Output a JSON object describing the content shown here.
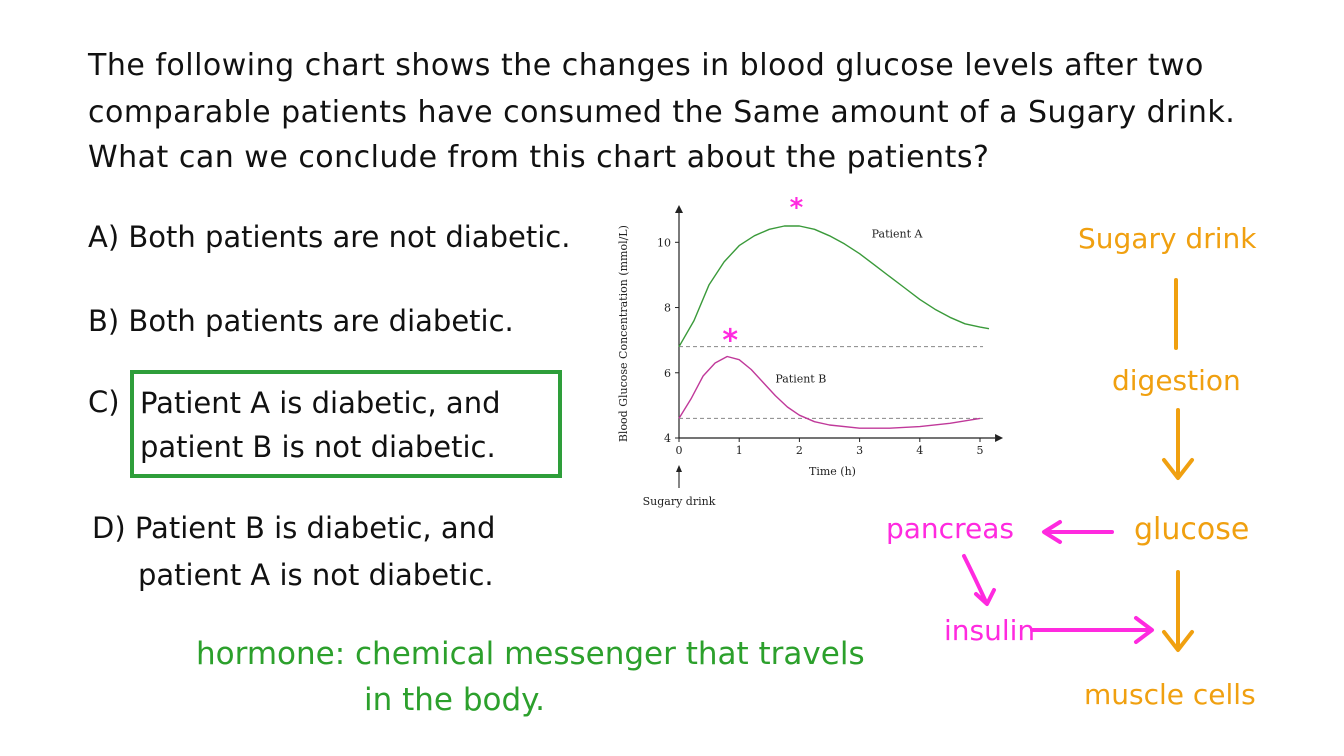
{
  "question": {
    "lines": [
      "The following chart shows the changes in blood glucose levels after two",
      "comparable patients have consumed the Same amount of a Sugary drink.",
      "What can we conclude from this chart about the patients?"
    ]
  },
  "options": {
    "a": "A) Both patients are not diabetic.",
    "b": "B) Both patients are diabetic.",
    "c_label": "C)",
    "c_line1": "Patient A is diabetic, and",
    "c_line2": "patient B is not diabetic.",
    "d_line1": "D) Patient B is diabetic, and",
    "d_line2": "patient A is not diabetic."
  },
  "note": {
    "line1": "hormone: chemical messenger that travels",
    "line2": "in the body."
  },
  "flow": {
    "sugary_drink": "Sugary drink",
    "digestion": "digestion",
    "glucose": "glucose",
    "pancreas": "pancreas",
    "insulin": "insulin",
    "muscle_cells": "muscle cells",
    "colors": {
      "orange": "#f0a010",
      "magenta": "#ff2adf",
      "green": "#2ca02c"
    }
  },
  "chart_data": {
    "type": "line",
    "ylabel": "Blood Glucose Concentration (mmol/L)",
    "xlabel": "Time (h)",
    "x_ticks": [
      0,
      1,
      2,
      3,
      4,
      5
    ],
    "y_ticks": [
      4,
      6,
      8,
      10
    ],
    "xlim": [
      0,
      5.2
    ],
    "ylim": [
      4,
      10.8
    ],
    "annotation_bottom": "Sugary drink",
    "reference_lines": [
      6.8,
      4.6
    ],
    "series": [
      {
        "name": "Patient A",
        "color": "#3a9a3a",
        "x": [
          0,
          0.25,
          0.5,
          0.75,
          1,
          1.25,
          1.5,
          1.75,
          2,
          2.25,
          2.5,
          2.75,
          3,
          3.25,
          3.5,
          3.75,
          4,
          4.25,
          4.5,
          4.75,
          5,
          5.15
        ],
        "y": [
          6.8,
          7.6,
          8.7,
          9.4,
          9.9,
          10.2,
          10.4,
          10.5,
          10.5,
          10.4,
          10.2,
          9.95,
          9.65,
          9.3,
          8.95,
          8.6,
          8.25,
          7.95,
          7.7,
          7.5,
          7.4,
          7.35
        ]
      },
      {
        "name": "Patient B",
        "color": "#c0399a",
        "x": [
          0,
          0.2,
          0.4,
          0.6,
          0.8,
          1,
          1.2,
          1.4,
          1.6,
          1.8,
          2,
          2.25,
          2.5,
          3,
          3.5,
          4,
          4.5,
          5
        ],
        "y": [
          4.6,
          5.2,
          5.9,
          6.3,
          6.5,
          6.4,
          6.1,
          5.7,
          5.3,
          4.95,
          4.7,
          4.5,
          4.4,
          4.3,
          4.3,
          4.35,
          4.45,
          4.6
        ]
      }
    ]
  }
}
